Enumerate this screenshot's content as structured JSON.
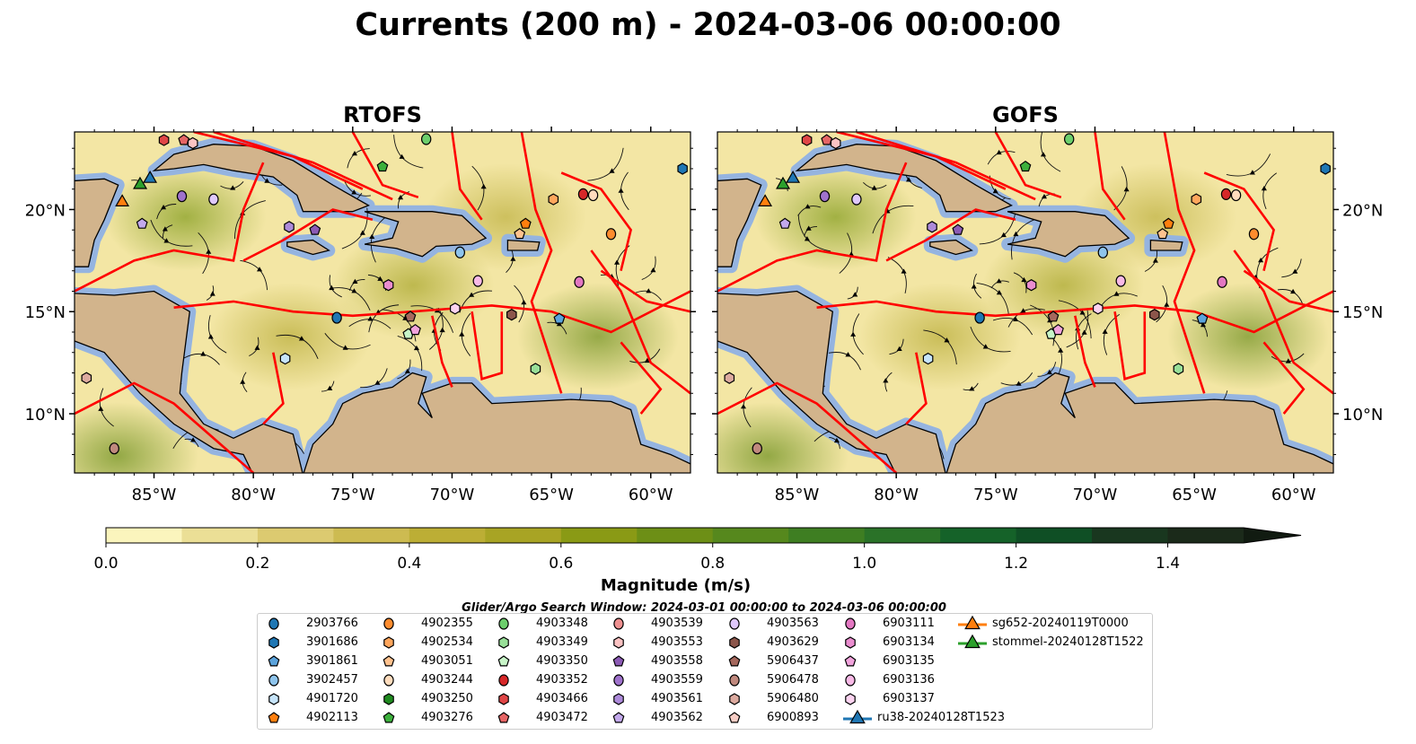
{
  "title": "Currents (200 m) - 2024-03-06 00:00:00",
  "panels": [
    {
      "title": "RTOFS"
    },
    {
      "title": "GOFS"
    }
  ],
  "map_data": {
    "lon_range": [
      -89.0,
      -58.0
    ],
    "lat_range": [
      7.1,
      23.8
    ],
    "x_ticks": [
      "85°W",
      "80°W",
      "75°W",
      "70°W",
      "65°W",
      "60°W"
    ],
    "x_tick_values": [
      -85,
      -80,
      -75,
      -70,
      -65,
      -60
    ],
    "y_ticks": [
      "20°N",
      "15°N",
      "10°N"
    ],
    "y_tick_values": [
      20,
      15,
      10
    ]
  },
  "colorbar": {
    "label": "Magnitude (m/s)",
    "min": 0.0,
    "max": 1.5,
    "step": 0.1,
    "extend": "max",
    "tick_labels": [
      "0.0",
      "0.2",
      "0.4",
      "0.6",
      "0.8",
      "1.0",
      "1.2",
      "1.4"
    ],
    "tick_values": [
      0,
      0.2,
      0.4,
      0.6,
      0.8,
      1.0,
      1.2,
      1.4
    ],
    "colors": [
      "#fbf5bd",
      "#ebdf96",
      "#dcca70",
      "#cdbb51",
      "#bcae35",
      "#a8a424",
      "#8a9a15",
      "#6d8f16",
      "#56881d",
      "#3e7e22",
      "#2a7228",
      "#156229",
      "#0f4f25",
      "#19371f",
      "#1b2a1a",
      "#111b11"
    ]
  },
  "legend": {
    "title": "Glider/Argo Search Window: 2024-03-01 00:00:00 to 2024-03-06 00:00:00",
    "items": [
      {
        "label": "2903766",
        "shape": "circle",
        "color": "#1f77b4",
        "lon": -75.8,
        "lat": 14.7
      },
      {
        "label": "3901686",
        "shape": "hexagon",
        "color": "#1f77b4",
        "lon": -58.4,
        "lat": 22.0
      },
      {
        "label": "3901861",
        "shape": "pentagon",
        "color": "#5ba3dc",
        "lon": -64.6,
        "lat": 14.65
      },
      {
        "label": "3902457",
        "shape": "circle",
        "color": "#8ec4ec",
        "lon": -69.6,
        "lat": 17.9
      },
      {
        "label": "4901720",
        "shape": "hexagon",
        "color": "#c6e4fa",
        "lon": -78.4,
        "lat": 12.7
      },
      {
        "label": "4902113",
        "shape": "pentagon",
        "color": "#ff7f0e",
        "lon": -66.3,
        "lat": 19.3
      },
      {
        "label": "4902355",
        "shape": "circle",
        "color": "#ff8c2e",
        "lon": -62.0,
        "lat": 18.8
      },
      {
        "label": "4902534",
        "shape": "hexagon",
        "color": "#ffa65c",
        "lon": -64.9,
        "lat": 20.5
      },
      {
        "label": "4903051",
        "shape": "pentagon",
        "color": "#ffc28e",
        "lon": -66.6,
        "lat": 18.8
      },
      {
        "label": "4903244",
        "shape": "circle",
        "color": "#ffdcbd",
        "lon": -62.9,
        "lat": 20.7
      },
      {
        "label": "4903250",
        "shape": "hexagon",
        "color": "#1f8a1f",
        "lon": null,
        "lat": null
      },
      {
        "label": "4903276",
        "shape": "pentagon",
        "color": "#3cb03c",
        "lon": -73.5,
        "lat": 22.1
      },
      {
        "label": "4903348",
        "shape": "circle",
        "color": "#6ccf6c",
        "lon": -71.3,
        "lat": 23.45
      },
      {
        "label": "4903349",
        "shape": "hexagon",
        "color": "#98df98",
        "lon": -65.8,
        "lat": 12.2
      },
      {
        "label": "4903350",
        "shape": "pentagon",
        "color": "#c8f5c8",
        "lon": -72.2,
        "lat": 13.9
      },
      {
        "label": "4903352",
        "shape": "circle",
        "color": "#d62728",
        "lon": -63.4,
        "lat": 20.75
      },
      {
        "label": "4903466",
        "shape": "hexagon",
        "color": "#df4546",
        "lon": -84.5,
        "lat": 23.4
      },
      {
        "label": "4903472",
        "shape": "pentagon",
        "color": "#e66565",
        "lon": -83.5,
        "lat": 23.4
      },
      {
        "label": "4903539",
        "shape": "circle",
        "color": "#ee9090",
        "lon": null,
        "lat": null
      },
      {
        "label": "4903553",
        "shape": "hexagon",
        "color": "#fbc3c3",
        "lon": -83.05,
        "lat": 23.25
      },
      {
        "label": "4903558",
        "shape": "pentagon",
        "color": "#8c5bb5",
        "lon": -76.9,
        "lat": 19.0
      },
      {
        "label": "4903559",
        "shape": "circle",
        "color": "#9f72cc",
        "lon": -83.6,
        "lat": 20.65
      },
      {
        "label": "4903561",
        "shape": "hexagon",
        "color": "#ad8ada",
        "lon": -78.2,
        "lat": 19.15
      },
      {
        "label": "4903562",
        "shape": "pentagon",
        "color": "#c3a9ec",
        "lon": -85.6,
        "lat": 19.3
      },
      {
        "label": "4903563",
        "shape": "circle",
        "color": "#dfc8fb",
        "lon": -82.0,
        "lat": 20.5
      },
      {
        "label": "4903629",
        "shape": "hexagon",
        "color": "#8c564b",
        "lon": -67.0,
        "lat": 14.85
      },
      {
        "label": "5906437",
        "shape": "pentagon",
        "color": "#a5685d",
        "lon": -72.1,
        "lat": 14.75
      },
      {
        "label": "5906478",
        "shape": "circle",
        "color": "#c0897e",
        "lon": -87.0,
        "lat": 8.3
      },
      {
        "label": "5906480",
        "shape": "hexagon",
        "color": "#dcaa9f",
        "lon": -88.4,
        "lat": 11.75
      },
      {
        "label": "6900893",
        "shape": "pentagon",
        "color": "#f7cdc5",
        "lon": null,
        "lat": null
      },
      {
        "label": "6903111",
        "shape": "circle",
        "color": "#e377c2",
        "lon": -63.6,
        "lat": 16.45
      },
      {
        "label": "6903134",
        "shape": "hexagon",
        "color": "#ea8dcf",
        "lon": -73.2,
        "lat": 16.3
      },
      {
        "label": "6903135",
        "shape": "pentagon",
        "color": "#f1a3dc",
        "lon": -71.85,
        "lat": 14.1
      },
      {
        "label": "6903136",
        "shape": "circle",
        "color": "#f8b9e6",
        "lon": -68.7,
        "lat": 16.5
      },
      {
        "label": "6903137",
        "shape": "hexagon",
        "color": "#fcd3f0",
        "lon": -69.85,
        "lat": 15.15
      },
      {
        "label": "ru38-20240128T1523",
        "shape": "triangle",
        "color": "#1f77b4",
        "lon": -85.2,
        "lat": 21.55
      },
      {
        "label": "sg652-20240119T0000",
        "shape": "triangle",
        "color": "#ff7f0e",
        "lon": -86.6,
        "lat": 20.4
      },
      {
        "label": "stommel-20240128T1522",
        "shape": "triangle",
        "color": "#2ca02c",
        "lon": -85.7,
        "lat": 21.25
      }
    ]
  }
}
